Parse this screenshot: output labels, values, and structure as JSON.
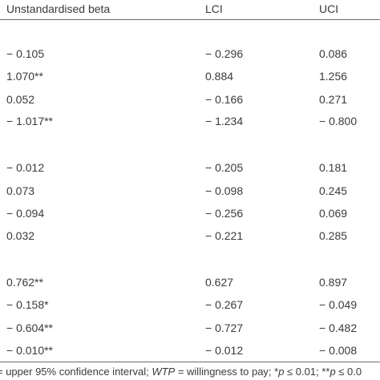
{
  "headers": {
    "beta": "Unstandardised beta",
    "lci": "LCI",
    "uci": "UCI"
  },
  "rows": [
    {
      "beta": "− 0.105",
      "lci": "− 0.296",
      "uci": "0.086"
    },
    {
      "beta": "1.070**",
      "lci": "0.884",
      "uci": "1.256"
    },
    {
      "beta": "0.052",
      "lci": "− 0.166",
      "uci": "0.271"
    },
    {
      "beta": "− 1.017**",
      "lci": "− 1.234",
      "uci": "− 0.800"
    },
    {
      "beta": "− 0.012",
      "lci": "− 0.205",
      "uci": "0.181"
    },
    {
      "beta": "0.073",
      "lci": "− 0.098",
      "uci": "0.245"
    },
    {
      "beta": "− 0.094",
      "lci": "− 0.256",
      "uci": "0.069"
    },
    {
      "beta": "0.032",
      "lci": "− 0.221",
      "uci": "0.285"
    },
    {
      "beta": "0.762**",
      "lci": "0.627",
      "uci": "0.897"
    },
    {
      "beta": "− 0.158*",
      "lci": "− 0.267",
      "uci": "− 0.049"
    },
    {
      "beta": "− 0.604**",
      "lci": "− 0.727",
      "uci": "− 0.482"
    },
    {
      "beta": "− 0.010**",
      "lci": "− 0.012",
      "uci": "− 0.008"
    }
  ],
  "footnote": {
    "part1": "= upper 95% confidence interval; ",
    "wtp": "WTP",
    "part2": " = willingness to pay; *",
    "p1": "p",
    "part3": " ≤ 0.01; **",
    "p2": "p",
    "part4": " ≤ 0.0"
  }
}
